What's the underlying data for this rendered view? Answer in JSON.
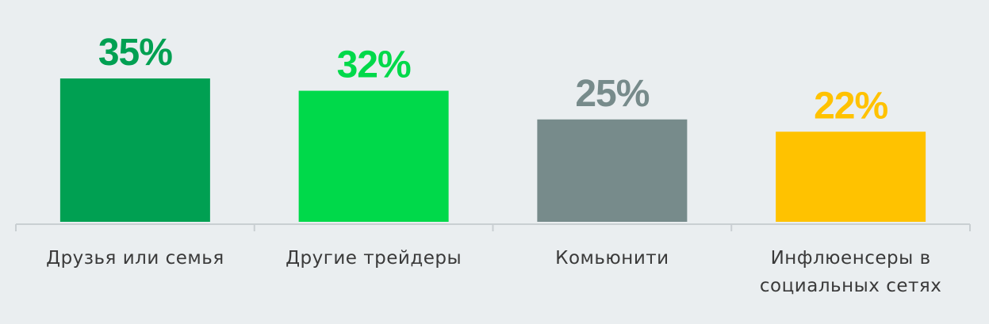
{
  "chart_data": {
    "type": "bar",
    "categories": [
      "Друзья или семья",
      "Другие трейдеры",
      "Комьюнити",
      "Инфлюенсеры в социальных сетях"
    ],
    "values": [
      35,
      32,
      25,
      22
    ],
    "value_labels": [
      "35%",
      "32%",
      "25%",
      "22%"
    ],
    "colors": [
      "#00a052",
      "#00d94a",
      "#778b8b",
      "#ffc200"
    ]
  }
}
